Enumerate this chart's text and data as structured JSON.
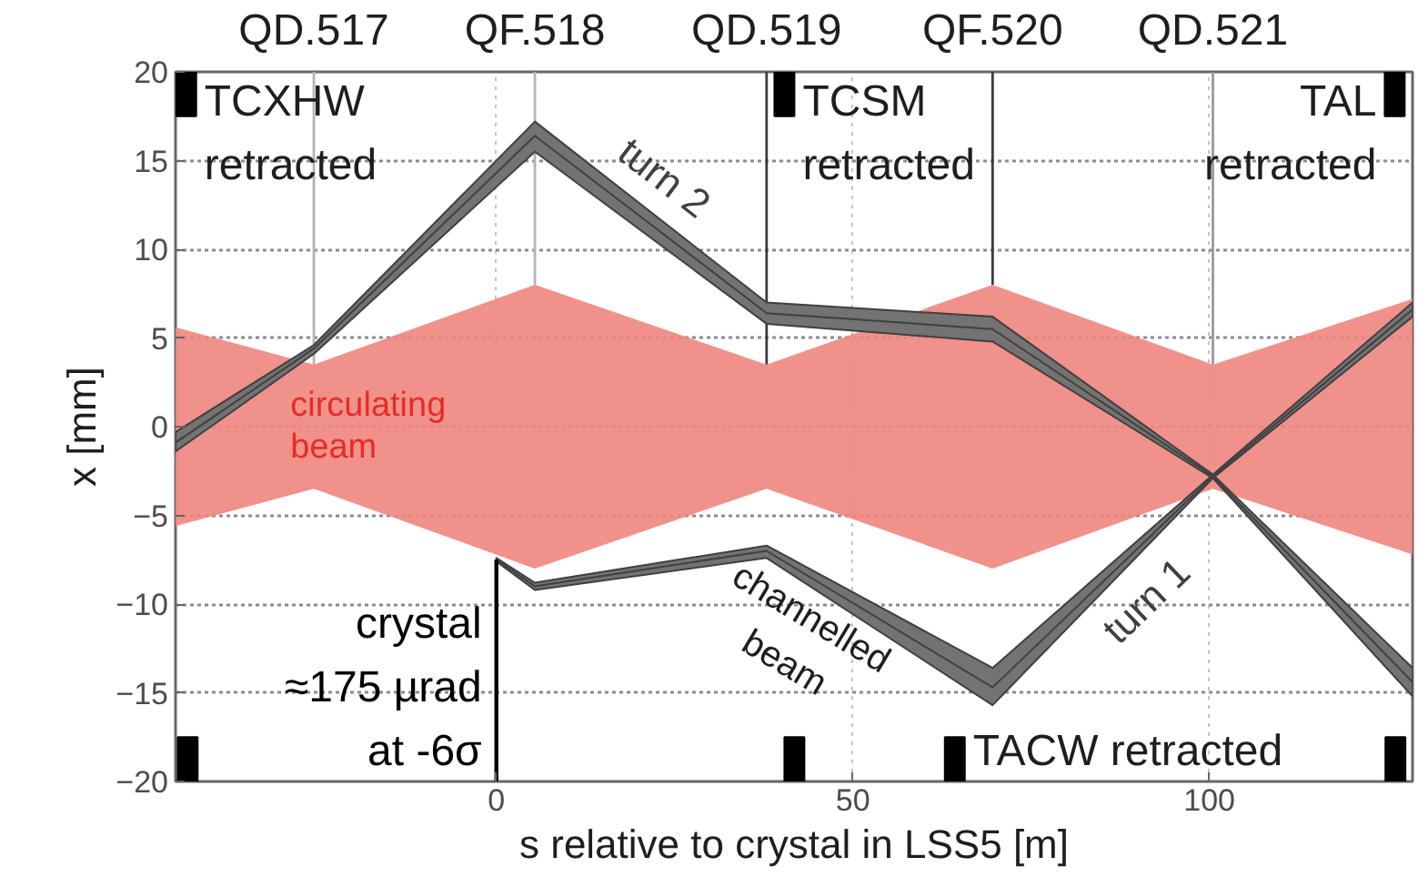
{
  "chart_data": {
    "type": "line",
    "xlabel": "s relative to crystal in LSS5 [m]",
    "ylabel": "x [mm]",
    "xlim": [
      -45,
      128.5
    ],
    "xticks": [
      0,
      50,
      100
    ],
    "ylim": [
      -20,
      20
    ],
    "yticks": [
      -20,
      -15,
      -10,
      -5,
      0,
      5,
      10,
      15,
      20
    ],
    "grid": true,
    "series": [
      {
        "type": "area",
        "name": "circulating\nbeam",
        "color": "#f08580",
        "x": [
          -45,
          -25.6,
          5.4,
          37.9,
          69.6,
          100.5,
          128.5
        ],
        "values": [
          5.6,
          3.5,
          8,
          3.5,
          8,
          3.5,
          7.2
        ]
      },
      {
        "type": "area",
        "color": "#f08580",
        "x": [
          -45,
          -25.6,
          5.4,
          37.9,
          69.6,
          100.5,
          128.5
        ],
        "values": [
          -5.6,
          -3.5,
          -8,
          -3.5,
          -8,
          -3.5,
          -7.2
        ]
      },
      {
        "name": "turn 1",
        "color": "#404040",
        "x": [
          0,
          5.4,
          37.9,
          69.6,
          100.5,
          128.5
        ],
        "values": [
          -7.5,
          -9.0,
          -7.0,
          -14.7,
          -2.8,
          6.6
        ],
        "lower": [
          -7.6,
          -9.2,
          -7.4,
          -15.7,
          -2.9,
          6.2
        ],
        "upper": [
          -7.4,
          -8.8,
          -6.7,
          -13.6,
          -2.7,
          7.0
        ]
      },
      {
        "name": "turn 2",
        "color": "#404040",
        "x": [
          -45,
          -25.6,
          5.4,
          37.9,
          69.6,
          100.5,
          128.5
        ],
        "values": [
          -0.9,
          4.4,
          16.4,
          6.4,
          5.5,
          -2.8,
          -14.4
        ],
        "lower": [
          -1.4,
          4.1,
          15.5,
          5.8,
          4.8,
          -2.9,
          -15.2
        ],
        "upper": [
          -0.3,
          4.6,
          17.2,
          7.0,
          6.2,
          -2.7,
          -13.6
        ]
      },
      {
        "name": "crystal\n≈175 µrad\nat -6σ",
        "color": "#000000",
        "x": [
          0,
          0
        ],
        "values": [
          -20,
          -7.5
        ]
      },
      {
        "type": "bar",
        "color": "#000000",
        "x": [
          -43.5,
          -43.3,
          40.4,
          41.8,
          64.3,
          126.0,
          126.1
        ],
        "base": [
          17.5,
          -20,
          17.5,
          -20,
          -20,
          17.5,
          -20
        ],
        "values": [
          2.5,
          2.5,
          2.5,
          2.5,
          2.5,
          2.5,
          2.5
        ]
      }
    ],
    "ref_lines": [
      {
        "axis": "x",
        "value": -25.6,
        "label": "QD.517",
        "color": "#b4b4b4"
      },
      {
        "axis": "x",
        "value": 5.4,
        "label": "QF.518",
        "color": "#b4b4b4"
      },
      {
        "axis": "x",
        "value": 37.9,
        "label": "QD.519",
        "color": "#3c3c3c"
      },
      {
        "axis": "x",
        "value": 69.6,
        "label": "QF.520",
        "color": "#3c3c3c"
      },
      {
        "axis": "x",
        "value": 100.5,
        "label": "QD.521",
        "color": "#9a9a9a"
      }
    ],
    "annotations": [
      {
        "text": "channelled\nbeam",
        "x": 50,
        "y": -9.9
      },
      {
        "text": "TCXHW\nretracted",
        "x": -43.5,
        "y": 20
      },
      {
        "text": "TCSM\nretracted",
        "x": 40.4,
        "y": 20
      },
      {
        "text": "TAL\nretracted",
        "x": 126.0,
        "y": 20
      },
      {
        "text": "TACW retracted",
        "x": 64.3,
        "y": -20
      }
    ]
  }
}
